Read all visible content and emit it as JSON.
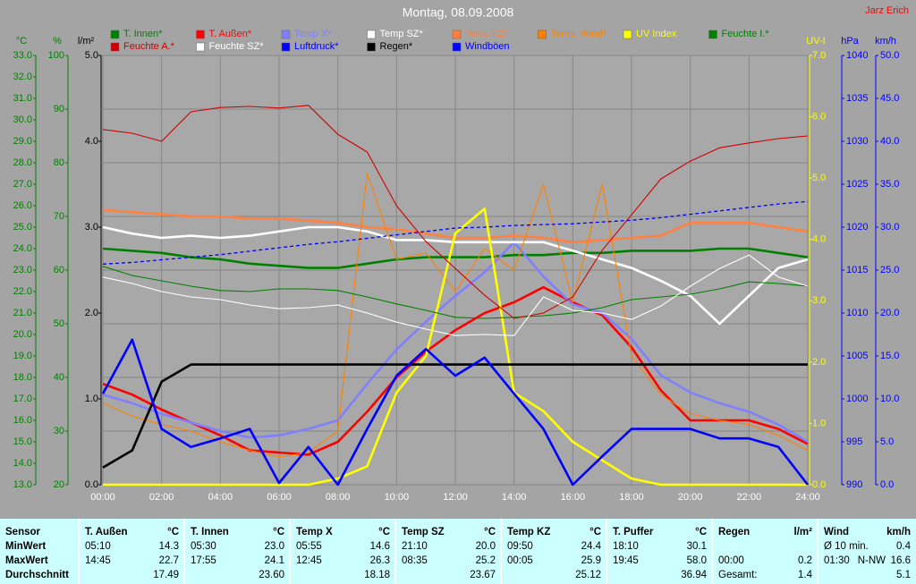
{
  "chart_data": {
    "type": "line",
    "title": "Montag, 08.09.2008",
    "author": "Jarz Erich",
    "x": [
      0,
      1,
      2,
      3,
      4,
      5,
      6,
      7,
      8,
      9,
      10,
      11,
      12,
      13,
      14,
      15,
      16,
      17,
      18,
      19,
      20,
      21,
      22,
      23,
      24
    ],
    "xlim": [
      0,
      24
    ],
    "xticks": [
      {
        "value": 0,
        "label": "00:00"
      },
      {
        "value": 2,
        "label": "02:00"
      },
      {
        "value": 4,
        "label": "04:00"
      },
      {
        "value": 6,
        "label": "06:00"
      },
      {
        "value": 8,
        "label": "08:00"
      },
      {
        "value": 10,
        "label": "10:00"
      },
      {
        "value": 12,
        "label": "12:00"
      },
      {
        "value": 14,
        "label": "14:00"
      },
      {
        "value": 16,
        "label": "16:00"
      },
      {
        "value": 18,
        "label": "18:00"
      },
      {
        "value": 20,
        "label": "20:00"
      },
      {
        "value": 22,
        "label": "22:00"
      },
      {
        "value": 24,
        "label": "24:00"
      }
    ],
    "yaxes": [
      {
        "label": "°C",
        "color": "#008000",
        "lim": [
          13,
          33
        ],
        "ticks": [
          {
            "value": 13,
            "label": "13.0"
          },
          {
            "value": 14,
            "label": "14.0"
          },
          {
            "value": 15,
            "label": "15.0"
          },
          {
            "value": 16,
            "label": "16.0"
          },
          {
            "value": 17,
            "label": "17.0"
          },
          {
            "value": 18,
            "label": "18.0"
          },
          {
            "value": 19,
            "label": "19.0"
          },
          {
            "value": 20,
            "label": "20.0"
          },
          {
            "value": 21,
            "label": "21.0"
          },
          {
            "value": 22,
            "label": "22.0"
          },
          {
            "value": 23,
            "label": "23.0"
          },
          {
            "value": 24,
            "label": "24.0"
          },
          {
            "value": 25,
            "label": "25.0"
          },
          {
            "value": 26,
            "label": "26.0"
          },
          {
            "value": 27,
            "label": "27.0"
          },
          {
            "value": 28,
            "label": "28.0"
          },
          {
            "value": 29,
            "label": "29.0"
          },
          {
            "value": 30,
            "label": "30.0"
          },
          {
            "value": 31,
            "label": "31.0"
          },
          {
            "value": 32,
            "label": "32.0"
          },
          {
            "value": 33,
            "label": "33.0"
          }
        ]
      },
      {
        "label": "%",
        "color": "#008000",
        "lim": [
          20,
          100
        ],
        "grid": true,
        "ticks": [
          20,
          30,
          40,
          50,
          60,
          70,
          80,
          90,
          100
        ]
      },
      {
        "label": "l/m²",
        "color": "#000000",
        "lim": [
          0,
          5
        ],
        "ticks": [
          {
            "value": 0,
            "label": "0.0"
          },
          {
            "value": 1,
            "label": "1.0"
          },
          {
            "value": 2,
            "label": "2.0"
          },
          {
            "value": 3,
            "label": "3.0"
          },
          {
            "value": 4,
            "label": "4.0"
          },
          {
            "value": 5,
            "label": "5.0"
          }
        ]
      },
      {
        "label": "UV-I",
        "color": "#ffff00",
        "lim": [
          0,
          7
        ],
        "ticks": [
          {
            "value": 0,
            "label": "0.0"
          },
          {
            "value": 1,
            "label": "1.0"
          },
          {
            "value": 2,
            "label": "2.0"
          },
          {
            "value": 3,
            "label": "3.0"
          },
          {
            "value": 4,
            "label": "4.0"
          },
          {
            "value": 5,
            "label": "5.0"
          },
          {
            "value": 6,
            "label": "6.0"
          },
          {
            "value": 7,
            "label": "7.0"
          }
        ]
      },
      {
        "label": "hPa",
        "color": "#0000ff",
        "lim": [
          990,
          1040
        ],
        "ticks": [
          990,
          995,
          1000,
          1005,
          1010,
          1015,
          1020,
          1025,
          1030,
          1035,
          1040
        ]
      },
      {
        "label": "km/h",
        "color": "#0000ff",
        "lim": [
          0,
          50
        ],
        "ticks": [
          {
            "value": 0,
            "label": "0.0"
          },
          {
            "value": 5,
            "label": "5.0"
          },
          {
            "value": 10,
            "label": "10.0"
          },
          {
            "value": 15,
            "label": "15.0"
          },
          {
            "value": 20,
            "label": "20.0"
          },
          {
            "value": 25,
            "label": "25.0"
          },
          {
            "value": 30,
            "label": "30.0"
          },
          {
            "value": 35,
            "label": "35.0"
          },
          {
            "value": 40,
            "label": "40.0"
          },
          {
            "value": 45,
            "label": "45.0"
          },
          {
            "value": 50,
            "label": "50.0"
          }
        ]
      }
    ],
    "series": [
      {
        "name": "T. Innen*",
        "color": "#008000",
        "axis": 0,
        "style": "thick",
        "values": [
          24.0,
          23.9,
          23.8,
          23.6,
          23.5,
          23.3,
          23.2,
          23.1,
          23.1,
          23.3,
          23.5,
          23.6,
          23.6,
          23.6,
          23.7,
          23.7,
          23.8,
          23.8,
          23.9,
          23.9,
          23.9,
          24.0,
          24.0,
          23.8,
          23.6
        ]
      },
      {
        "name": "T. Außen*",
        "color": "#ff0000",
        "axis": 0,
        "style": "thick",
        "values": [
          17.7,
          17.2,
          16.5,
          15.9,
          15.3,
          14.6,
          14.5,
          14.4,
          15.0,
          16.4,
          18.0,
          19.2,
          20.2,
          21.0,
          21.5,
          22.2,
          21.5,
          20.9,
          19.4,
          17.4,
          16.0,
          16.0,
          16.0,
          15.6,
          14.9
        ]
      },
      {
        "name": "Temp X*",
        "color": "#8080ff",
        "axis": 0,
        "style": "thick",
        "values": [
          17.2,
          16.8,
          16.3,
          15.9,
          15.5,
          15.2,
          15.3,
          15.6,
          16.0,
          17.7,
          19.3,
          20.6,
          21.8,
          22.9,
          24.3,
          22.7,
          21.4,
          21.0,
          19.8,
          18.1,
          17.3,
          16.8,
          16.4,
          15.8,
          15.0
        ]
      },
      {
        "name": "Temp SZ*",
        "color": "#ffffff",
        "axis": 0,
        "style": "thick",
        "values": [
          25.0,
          24.7,
          24.5,
          24.6,
          24.5,
          24.6,
          24.8,
          25.0,
          25.0,
          24.8,
          24.4,
          24.4,
          24.3,
          24.3,
          24.3,
          24.3,
          23.9,
          23.5,
          23.1,
          22.5,
          21.8,
          20.5,
          21.8,
          23.1,
          23.5
        ]
      },
      {
        "name": "Temp KZ*",
        "color": "#ff8040",
        "axis": 0,
        "style": "thick",
        "values": [
          25.8,
          25.7,
          25.6,
          25.5,
          25.5,
          25.4,
          25.4,
          25.3,
          25.2,
          25.0,
          24.9,
          24.7,
          24.5,
          24.5,
          24.6,
          24.5,
          24.3,
          24.4,
          24.5,
          24.6,
          25.2,
          25.2,
          25.2,
          25.0,
          24.8
        ]
      },
      {
        "name": "Temp. Wind*",
        "color": "#ff8000",
        "axis": 0,
        "style": "thin",
        "values": [
          16.8,
          16.2,
          15.8,
          15.5,
          15.0,
          14.6,
          14.3,
          14.5,
          15.5,
          27.5,
          23.5,
          23.8,
          22.0,
          24.0,
          23.0,
          27.0,
          21.5,
          27.0,
          19.0,
          17.2,
          16.3,
          16.0,
          15.8,
          15.3,
          14.6
        ]
      },
      {
        "name": "UV Index",
        "color": "#ffff00",
        "axis": 3,
        "style": "thick",
        "values": [
          0,
          0,
          0,
          0,
          0,
          0,
          0,
          0,
          0.1,
          0.3,
          1.5,
          2.1,
          4.1,
          4.5,
          1.5,
          1.2,
          0.7,
          0.4,
          0.1,
          0,
          0,
          0,
          0,
          0,
          0
        ]
      },
      {
        "name": "Feuchte I.*",
        "color": "#008000",
        "axis": 1,
        "style": "thin",
        "values": [
          60.7,
          59,
          58,
          57,
          56.2,
          56,
          56.5,
          56.5,
          56.2,
          55,
          53.7,
          52.5,
          51.2,
          51,
          51.2,
          51.5,
          52,
          53,
          54.5,
          55,
          55.5,
          56.5,
          57.8,
          57.5,
          57
        ]
      },
      {
        "name": "Feuchte A.*",
        "color": "#d00000",
        "axis": 1,
        "style": "thin",
        "values": [
          86.2,
          85.5,
          84,
          89.5,
          90.3,
          90.5,
          90.2,
          90.7,
          85.3,
          82,
          72,
          65.3,
          60.3,
          55.3,
          51,
          52,
          55,
          63.7,
          70.3,
          77,
          80.3,
          82.8,
          83.7,
          84.5,
          85
        ]
      },
      {
        "name": "Feuchte SZ*",
        "color": "#ffffff",
        "axis": 1,
        "style": "thin",
        "values": [
          58.7,
          57.5,
          56,
          55,
          54.5,
          53.5,
          52.8,
          53,
          53.5,
          52,
          50.3,
          49,
          47.8,
          48,
          47.8,
          55,
          52.5,
          52,
          50.8,
          53.3,
          57,
          60.3,
          62.8,
          58.7,
          57
        ]
      },
      {
        "name": "Luftdruck*",
        "color": "#0000ff",
        "axis": 4,
        "style": "dashed",
        "values": [
          1015.7,
          1015.9,
          1016.2,
          1016.5,
          1016.8,
          1017.2,
          1017.6,
          1018,
          1018.3,
          1018.7,
          1019.1,
          1019.5,
          1019.9,
          1020,
          1020.2,
          1020.3,
          1020.4,
          1020.6,
          1020.8,
          1021.1,
          1021.5,
          1021.9,
          1022.3,
          1022.7,
          1023
        ]
      },
      {
        "name": "Regen*",
        "color": "#000000",
        "axis": 2,
        "style": "thick",
        "values": [
          0.2,
          0.4,
          1.2,
          1.4,
          1.4,
          1.4,
          1.4,
          1.4,
          1.4,
          1.4,
          1.4,
          1.4,
          1.4,
          1.4,
          1.4,
          1.4,
          1.4,
          1.4,
          1.4,
          1.4,
          1.4,
          1.4,
          1.4,
          1.4,
          1.4
        ]
      },
      {
        "name": "Windböen",
        "color": "#0000ff",
        "axis": 5,
        "style": "thick",
        "values": [
          10.6,
          16.9,
          6.5,
          4.4,
          5.4,
          6.5,
          0.2,
          4.4,
          0,
          6.5,
          12.7,
          15.8,
          12.7,
          14.8,
          10.6,
          6.5,
          0,
          3.3,
          6.5,
          6.5,
          6.5,
          5.4,
          5.4,
          4.4,
          0
        ]
      }
    ]
  },
  "table": {
    "corner": "Sensor",
    "columns": [
      {
        "name": "T. Außen",
        "unit": "°C"
      },
      {
        "name": "T. Innen",
        "unit": "°C"
      },
      {
        "name": "Temp X",
        "unit": "°C"
      },
      {
        "name": "Temp SZ",
        "unit": "°C"
      },
      {
        "name": "Temp KZ",
        "unit": "°C"
      },
      {
        "name": "T. Puffer",
        "unit": "°C"
      },
      {
        "name": "Regen",
        "unit": "l/m²"
      },
      {
        "name": "Wind",
        "unit": "km/h"
      }
    ],
    "rows": [
      {
        "label": "MinWert",
        "cells": [
          [
            "05:10",
            "14.3"
          ],
          [
            "05:30",
            "23.0"
          ],
          [
            "05:55",
            "14.6"
          ],
          [
            "21:10",
            "20.0"
          ],
          [
            "09:50",
            "24.4"
          ],
          [
            "18:10",
            "30.1"
          ],
          [],
          [
            "Ø 10 min.",
            "0.4"
          ]
        ]
      },
      {
        "label": "MaxWert",
        "cells": [
          [
            "14:45",
            "22.7"
          ],
          [
            "17:55",
            "24.1"
          ],
          [
            "12:45",
            "26.3"
          ],
          [
            "08:35",
            "25.2"
          ],
          [
            "00:05",
            "25.9"
          ],
          [
            "19:45",
            "58.0"
          ],
          [
            "00:00",
            "0.2"
          ],
          [
            "01:30",
            "N-NW",
            "16.6"
          ]
        ]
      },
      {
        "label": "Durchschnitt",
        "cells": [
          [
            "17.49"
          ],
          [
            "23.60"
          ],
          [
            "18.18"
          ],
          [
            "23.67"
          ],
          [
            "25.12"
          ],
          [
            "36.94"
          ],
          [
            "Gesamt:",
            "1.4"
          ],
          [
            "5.1"
          ]
        ]
      }
    ]
  }
}
